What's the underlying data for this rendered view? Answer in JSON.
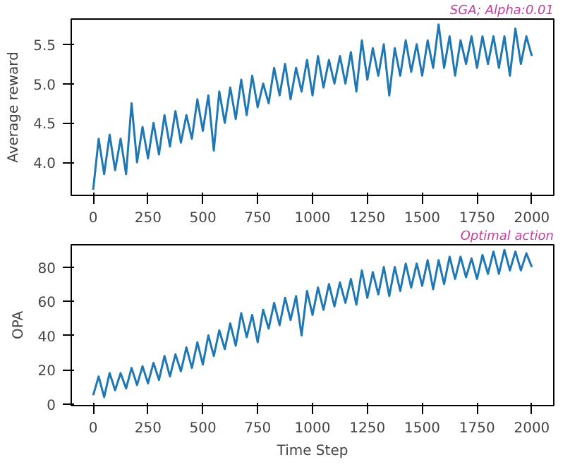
{
  "chart_data": [
    {
      "type": "line",
      "title": "SGA; Alpha:0.01",
      "ylabel": "Average reward",
      "xlim": [
        -100,
        2100
      ],
      "ylim": [
        3.58,
        5.82
      ],
      "xticks": [
        0,
        250,
        500,
        750,
        1000,
        1250,
        1500,
        1750,
        2000
      ],
      "yticks": [
        {
          "value": 4.0,
          "label": "4.0"
        },
        {
          "value": 4.5,
          "label": "4.5"
        },
        {
          "value": 5.0,
          "label": "5.0"
        },
        {
          "value": 5.5,
          "label": "5.5"
        }
      ],
      "grid": false,
      "x": [
        0,
        25,
        50,
        75,
        100,
        125,
        150,
        175,
        200,
        225,
        250,
        275,
        300,
        325,
        350,
        375,
        400,
        425,
        450,
        475,
        500,
        525,
        550,
        575,
        600,
        625,
        650,
        675,
        700,
        725,
        750,
        775,
        800,
        825,
        850,
        875,
        900,
        925,
        950,
        975,
        1000,
        1025,
        1050,
        1075,
        1100,
        1125,
        1150,
        1175,
        1200,
        1225,
        1250,
        1275,
        1300,
        1325,
        1350,
        1375,
        1400,
        1425,
        1450,
        1475,
        1500,
        1525,
        1550,
        1575,
        1600,
        1625,
        1650,
        1675,
        1700,
        1725,
        1750,
        1775,
        1800,
        1825,
        1850,
        1875,
        1900,
        1925,
        1950,
        1975,
        2000
      ],
      "series": [
        {
          "color": "#1f77b4",
          "values": [
            3.65,
            4.3,
            3.85,
            4.35,
            3.9,
            4.3,
            3.85,
            4.75,
            4.0,
            4.45,
            4.05,
            4.5,
            4.1,
            4.6,
            4.2,
            4.65,
            4.25,
            4.6,
            4.3,
            4.8,
            4.4,
            4.85,
            4.15,
            4.9,
            4.5,
            4.95,
            4.55,
            5.05,
            4.6,
            5.1,
            4.7,
            5.0,
            4.75,
            5.2,
            4.85,
            5.25,
            4.8,
            5.2,
            4.9,
            5.3,
            4.85,
            5.35,
            4.95,
            5.3,
            5.0,
            5.35,
            5.0,
            5.4,
            4.9,
            5.55,
            5.05,
            5.45,
            5.1,
            5.5,
            4.85,
            5.45,
            5.1,
            5.55,
            5.15,
            5.5,
            5.1,
            5.55,
            5.2,
            5.75,
            5.2,
            5.6,
            5.1,
            5.55,
            5.25,
            5.6,
            5.2,
            5.6,
            5.25,
            5.6,
            5.2,
            5.6,
            5.1,
            5.7,
            5.25,
            5.6,
            5.35
          ]
        }
      ]
    },
    {
      "type": "line",
      "title": "Optimal action",
      "ylabel": "OPA",
      "xlabel": "Time Step",
      "xlim": [
        -100,
        2100
      ],
      "ylim": [
        -1,
        93
      ],
      "xticks": [
        0,
        250,
        500,
        750,
        1000,
        1250,
        1500,
        1750,
        2000
      ],
      "yticks": [
        0,
        20,
        40,
        60,
        80
      ],
      "grid": false,
      "x": [
        0,
        25,
        50,
        75,
        100,
        125,
        150,
        175,
        200,
        225,
        250,
        275,
        300,
        325,
        350,
        375,
        400,
        425,
        450,
        475,
        500,
        525,
        550,
        575,
        600,
        625,
        650,
        675,
        700,
        725,
        750,
        775,
        800,
        825,
        850,
        875,
        900,
        925,
        950,
        975,
        1000,
        1025,
        1050,
        1075,
        1100,
        1125,
        1150,
        1175,
        1200,
        1225,
        1250,
        1275,
        1300,
        1325,
        1350,
        1375,
        1400,
        1425,
        1450,
        1475,
        1500,
        1525,
        1550,
        1575,
        1600,
        1625,
        1650,
        1675,
        1700,
        1725,
        1750,
        1775,
        1800,
        1825,
        1850,
        1875,
        1900,
        1925,
        1950,
        1975,
        2000
      ],
      "series": [
        {
          "color": "#1f77b4",
          "values": [
            5,
            16,
            4,
            18,
            8,
            18,
            9,
            21,
            11,
            22,
            12,
            24,
            14,
            28,
            16,
            29,
            19,
            33,
            21,
            36,
            23,
            40,
            28,
            43,
            32,
            47,
            34,
            53,
            39,
            52,
            36,
            55,
            44,
            59,
            46,
            62,
            49,
            63,
            40,
            66,
            52,
            68,
            55,
            70,
            57,
            71,
            59,
            73,
            58,
            78,
            62,
            77,
            64,
            80,
            63,
            80,
            66,
            82,
            68,
            82,
            69,
            84,
            67,
            84,
            70,
            86,
            73,
            86,
            74,
            85,
            73,
            87,
            76,
            89,
            76,
            90,
            78,
            89,
            78,
            88,
            80
          ]
        }
      ]
    }
  ]
}
